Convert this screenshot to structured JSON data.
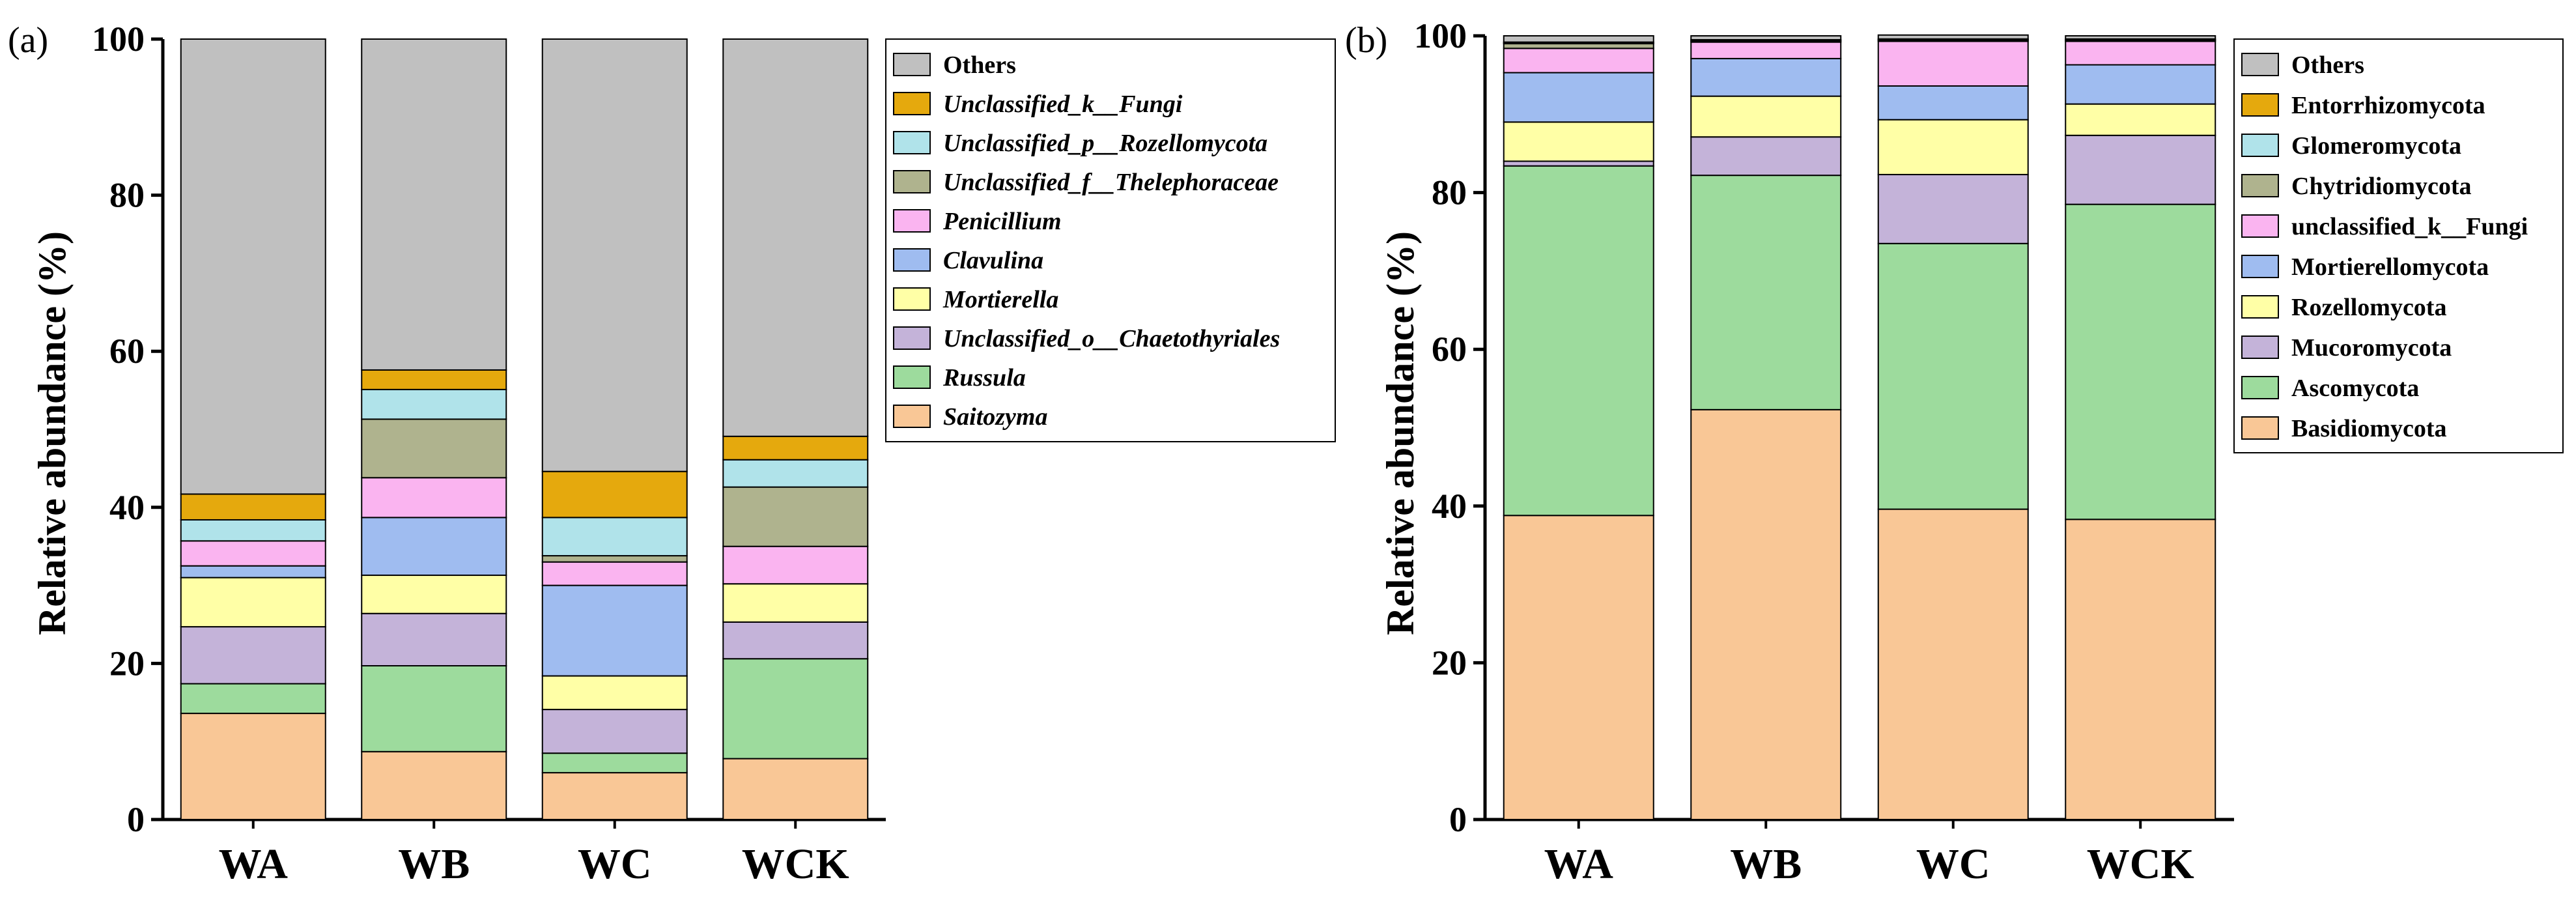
{
  "chart_data": [
    {
      "panel_label": "(a)",
      "type": "bar",
      "stacked": true,
      "categories": [
        "WA",
        "WB",
        "WC",
        "WCK"
      ],
      "ylabel": "Relative abundance (%)",
      "xlabel": "",
      "ylim": [
        0,
        100
      ],
      "yticks": [
        "0",
        "20",
        "40",
        "60",
        "80",
        "100"
      ],
      "legend_position": "right",
      "legend_italic": true,
      "series": [
        {
          "name": "Saitozyma",
          "color": "#F9C796",
          "values": [
            13.6,
            8.7,
            6.0,
            7.8
          ]
        },
        {
          "name": "Russula",
          "color": "#9DDB9D",
          "values": [
            3.8,
            11.0,
            2.5,
            12.8
          ]
        },
        {
          "name": "Unclassified_o__Chaetothyriales",
          "color": "#C4B3D9",
          "values": [
            7.3,
            6.7,
            5.6,
            4.7
          ]
        },
        {
          "name": "Mortierella",
          "color": "#FFFFA6",
          "values": [
            6.3,
            4.9,
            4.3,
            4.9
          ]
        },
        {
          "name": "Clavulina",
          "color": "#9FBCF0",
          "values": [
            1.5,
            7.4,
            11.6,
            0.0
          ]
        },
        {
          "name": "Penicillium",
          "color": "#FAB4F0",
          "values": [
            3.2,
            5.1,
            3.0,
            4.8
          ]
        },
        {
          "name": "Unclassified_f__Thelephoraceae",
          "color": "#AFB38E",
          "values": [
            0.0,
            7.5,
            0.8,
            7.6
          ]
        },
        {
          "name": "Unclassified_p__Rozellomycota",
          "color": "#B0E3EA",
          "values": [
            2.7,
            3.8,
            4.9,
            3.5
          ]
        },
        {
          "name": "Unclassified_k__Fungi",
          "color": "#E5A90D",
          "values": [
            3.3,
            2.5,
            5.9,
            3.0
          ]
        },
        {
          "name": "Others",
          "color": "#C0C0C0",
          "values": [
            58.3,
            42.4,
            55.4,
            50.9
          ]
        }
      ]
    },
    {
      "panel_label": "(b)",
      "type": "bar",
      "stacked": true,
      "categories": [
        "WA",
        "WB",
        "WC",
        "WCK"
      ],
      "ylabel": "Relative abundance (%)",
      "xlabel": "",
      "ylim": [
        0,
        100
      ],
      "yticks": [
        "0",
        "20",
        "40",
        "60",
        "80",
        "100"
      ],
      "legend_position": "right",
      "legend_italic": false,
      "series": [
        {
          "name": "Basidiomycota",
          "color": "#F9C796",
          "values": [
            38.8,
            52.3,
            39.6,
            38.3
          ]
        },
        {
          "name": "Ascomycota",
          "color": "#9DDB9D",
          "values": [
            44.6,
            29.9,
            33.9,
            40.2
          ]
        },
        {
          "name": "Mucoromycota",
          "color": "#C4B3D9",
          "values": [
            0.6,
            4.9,
            8.8,
            8.8
          ]
        },
        {
          "name": "Rozellomycota",
          "color": "#FFFFA6",
          "values": [
            5.0,
            5.2,
            7.0,
            4.0
          ]
        },
        {
          "name": "Mortierellomycota",
          "color": "#9FBCF0",
          "values": [
            6.3,
            4.8,
            4.3,
            5.0
          ]
        },
        {
          "name": "unclassified_k__Fungi",
          "color": "#FAB4F0",
          "values": [
            3.1,
            2.1,
            5.7,
            3.0
          ]
        },
        {
          "name": "Chytridiomycota",
          "color": "#AFB38E",
          "values": [
            0.6,
            0.1,
            0.1,
            0.1
          ]
        },
        {
          "name": "Glomeromycota",
          "color": "#B0E3EA",
          "values": [
            0.1,
            0.1,
            0.1,
            0.1
          ]
        },
        {
          "name": "Entorrhizomycota",
          "color": "#E5A90D",
          "values": [
            0.1,
            0.1,
            0.1,
            0.1
          ]
        },
        {
          "name": "Others",
          "color": "#C0C0C0",
          "values": [
            0.8,
            0.5,
            0.5,
            0.4
          ]
        }
      ]
    }
  ]
}
